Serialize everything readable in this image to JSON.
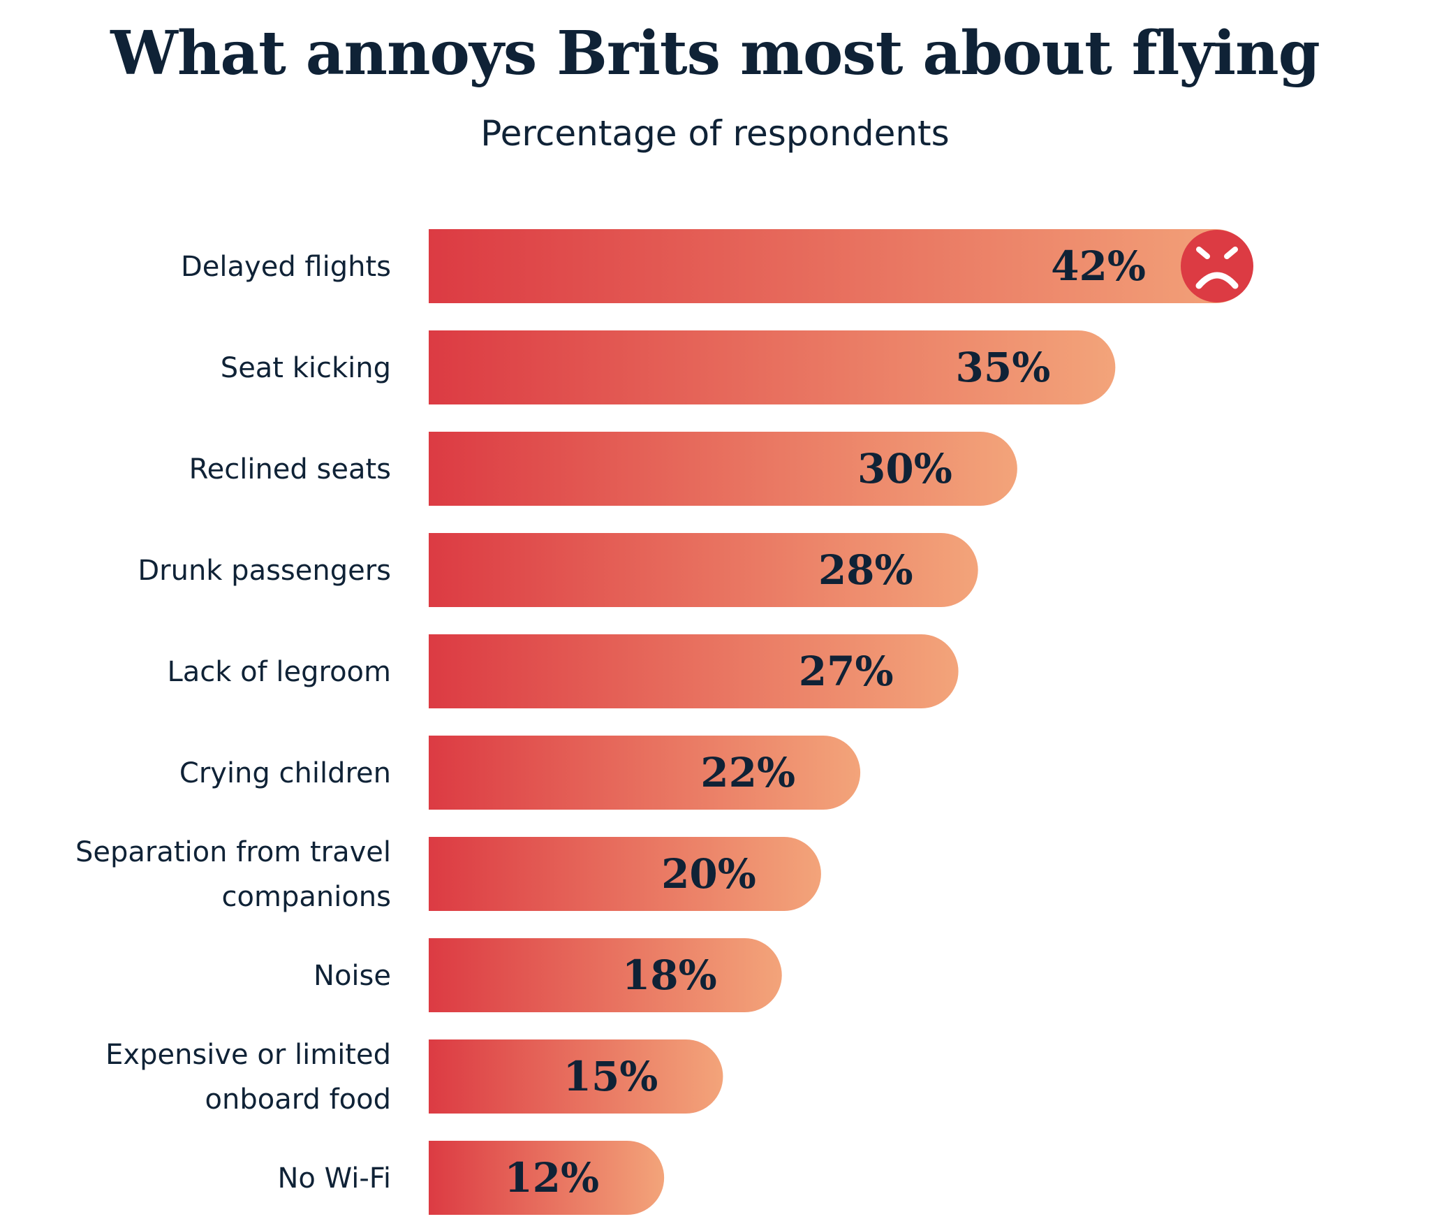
{
  "header": {
    "title": "What annoys Brits most about flying",
    "subtitle": "Percentage of respondents"
  },
  "colors": {
    "bar_start": "#dc3b43",
    "bar_end": "#f3a47a",
    "title_text": "#0f2236",
    "badge": "#dc3b43",
    "badge_face": "#ffffff"
  },
  "icons": {
    "top_bar_badge": "angry-face-icon"
  },
  "chart_data": {
    "type": "bar",
    "orientation": "horizontal",
    "title": "What annoys Brits most about flying",
    "subtitle": "Percentage of respondents",
    "xlabel": "",
    "ylabel": "",
    "unit": "%",
    "xlim": [
      0,
      42
    ],
    "grid": false,
    "legend": "none",
    "categories": [
      [
        "Delayed flights"
      ],
      [
        "Seat kicking"
      ],
      [
        "Reclined seats"
      ],
      [
        "Drunk passengers"
      ],
      [
        "Lack of legroom"
      ],
      [
        "Crying children"
      ],
      [
        "Separation from travel",
        "companions"
      ],
      [
        "Noise"
      ],
      [
        "Expensive or limited",
        "onboard food"
      ],
      [
        "No Wi-Fi"
      ]
    ],
    "values": [
      42,
      35,
      30,
      28,
      27,
      22,
      20,
      18,
      15,
      12
    ],
    "data_labels": [
      "42%",
      "35%",
      "30%",
      "28%",
      "27%",
      "22%",
      "20%",
      "18%",
      "15%",
      "12%"
    ]
  }
}
